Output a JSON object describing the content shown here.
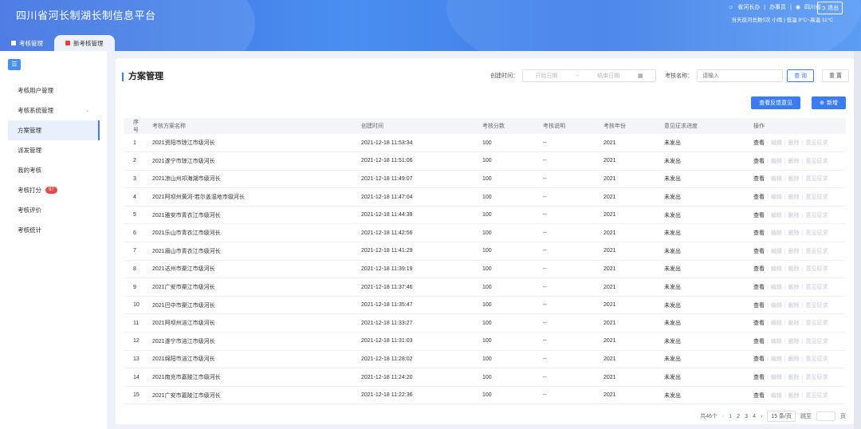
{
  "header": {
    "title": "四川省河长制湖长制信息平台",
    "user": "省河长办",
    "sep1": "|",
    "role": "办事员",
    "sep2": "|",
    "region": "四川省",
    "logout": "退出",
    "weather": "当天巡河总数0次 小雨 | 低温 9°C~高温 11°C"
  },
  "tabs": [
    {
      "label": "考核管理"
    },
    {
      "label": "新考核管理"
    }
  ],
  "sidebar": {
    "toggle": "☰",
    "items": [
      {
        "label": "考核用户管理"
      },
      {
        "label": "考核系统管理",
        "chev": "⌄"
      },
      {
        "label": "方案管理"
      },
      {
        "label": "派发管理"
      },
      {
        "label": "我的考核"
      },
      {
        "label": "考核打分",
        "badge": "97"
      },
      {
        "label": "考核评价"
      },
      {
        "label": "考核统计"
      }
    ]
  },
  "main": {
    "title": "方案管理",
    "filter": {
      "created_label": "创建时间：",
      "start_ph": "开始日期",
      "range_sep": "~",
      "end_ph": "结束日期",
      "name_label": "考核名称：",
      "name_ph": "请输入",
      "query": "查 询",
      "reset": "重 置"
    },
    "feedback_btn": "查看反馈意见",
    "add_btn": "新增",
    "columns": [
      "序号",
      "考核方案名称",
      "创建时间",
      "考核分数",
      "考核说明",
      "考核年份",
      "意见征求进度",
      "操作"
    ],
    "ops": [
      "查看",
      "编辑",
      "删除",
      "意见征求"
    ],
    "rows": [
      [
        "1",
        "2021资阳市琼江市级河长",
        "2021-12-18 11:53:34",
        "100",
        "--",
        "2021",
        "未发出"
      ],
      [
        "2",
        "2021遂宁市琼江市级河长",
        "2021-12-18 11:51:06",
        "100",
        "--",
        "2021",
        "未发出"
      ],
      [
        "3",
        "2021凉山州邛海湖市级河长",
        "2021-12-18 11:49:07",
        "100",
        "--",
        "2021",
        "未发出"
      ],
      [
        "4",
        "2021阿坝州黄河-若尔盖湿地市级河长",
        "2021-12-18 11:47:04",
        "100",
        "--",
        "2021",
        "未发出"
      ],
      [
        "5",
        "2021雅安市青衣江市级河长",
        "2021-12-18 11:44:39",
        "100",
        "--",
        "2021",
        "未发出"
      ],
      [
        "6",
        "2021乐山市青衣江市级河长",
        "2021-12-18 11:42:56",
        "100",
        "--",
        "2021",
        "未发出"
      ],
      [
        "7",
        "2021眉山市青衣江市级河长",
        "2021-12-18 11:41:29",
        "100",
        "--",
        "2021",
        "未发出"
      ],
      [
        "8",
        "2021达州市渠江市级河长",
        "2021-12-18 11:39:19",
        "100",
        "--",
        "2021",
        "未发出"
      ],
      [
        "9",
        "2021广安市渠江市级河长",
        "2021-12-18 11:37:46",
        "100",
        "--",
        "2021",
        "未发出"
      ],
      [
        "10",
        "2021巴中市渠江市级河长",
        "2021-12-18 11:35:47",
        "100",
        "--",
        "2021",
        "未发出"
      ],
      [
        "11",
        "2021阿坝州涪江市级河长",
        "2021-12-18 11:33:27",
        "100",
        "--",
        "2021",
        "未发出"
      ],
      [
        "12",
        "2021遂宁市涪江市级河长",
        "2021-12-18 11:31:03",
        "100",
        "--",
        "2021",
        "未发出"
      ],
      [
        "13",
        "2021绵阳市涪江市级河长",
        "2021-12-18 11:28:02",
        "100",
        "--",
        "2021",
        "未发出"
      ],
      [
        "14",
        "2021南充市嘉陵江市级河长",
        "2021-12-18 11:24:20",
        "100",
        "--",
        "2021",
        "未发出"
      ],
      [
        "15",
        "2021广安市嘉陵江市级河长",
        "2021-12-18 11:22:36",
        "100",
        "--",
        "2021",
        "未发出"
      ]
    ],
    "pager": {
      "total": "共46个",
      "prev": "‹",
      "pages": [
        "1",
        "2",
        "3",
        "4"
      ],
      "next": "›",
      "size": "15 条/页",
      "jump": "跳至",
      "unit": "页"
    }
  }
}
